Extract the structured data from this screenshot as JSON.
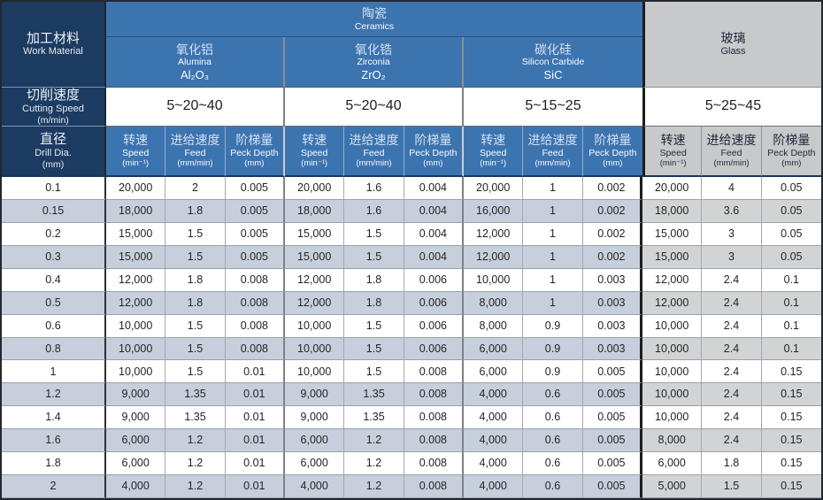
{
  "table": {
    "corner": {
      "zh": "加工材料",
      "en": "Work Material"
    },
    "ceramics_group": {
      "zh": "陶瓷",
      "en": "Ceramics"
    },
    "glass_group": {
      "zh": "玻璃",
      "en": "Glass"
    },
    "materials": [
      {
        "zh": "氧化铝",
        "en": "Alumina",
        "formula": "Al₂O₃",
        "cutting_speed": "5~20~40"
      },
      {
        "zh": "氧化锆",
        "en": "Zirconia",
        "formula": "ZrO₂",
        "cutting_speed": "5~20~40"
      },
      {
        "zh": "碳化硅",
        "en": "Silicon Carbide",
        "formula": "SiC",
        "cutting_speed": "5~15~25"
      }
    ],
    "glass_cutting_speed": "5~25~45",
    "cutting_speed_label": {
      "zh": "切削速度",
      "en": "Cutting Speed",
      "unit": "(m/min)"
    },
    "drill_dia_label": {
      "zh": "直径",
      "en": "Drill Dia.",
      "unit": "(mm)"
    },
    "sub_columns": [
      {
        "zh": "转速",
        "en": "Speed",
        "unit": "(min⁻¹)"
      },
      {
        "zh": "进给速度",
        "en": "Feed",
        "unit": "(mm/min)"
      },
      {
        "zh": "阶梯量",
        "en": "Peck Depth",
        "unit": "(mm)"
      }
    ],
    "rows": [
      [
        "0.1",
        "20,000",
        "2",
        "0.005",
        "20,000",
        "1.6",
        "0.004",
        "20,000",
        "1",
        "0.002",
        "20,000",
        "4",
        "0.05"
      ],
      [
        "0.15",
        "18,000",
        "1.8",
        "0.005",
        "18,000",
        "1.6",
        "0.004",
        "16,000",
        "1",
        "0.002",
        "18,000",
        "3.6",
        "0.05"
      ],
      [
        "0.2",
        "15,000",
        "1.5",
        "0.005",
        "15,000",
        "1.5",
        "0.004",
        "12,000",
        "1",
        "0.002",
        "15,000",
        "3",
        "0.05"
      ],
      [
        "0.3",
        "15,000",
        "1.5",
        "0.005",
        "15,000",
        "1.5",
        "0.004",
        "12,000",
        "1",
        "0.002",
        "15,000",
        "3",
        "0.05"
      ],
      [
        "0.4",
        "12,000",
        "1.8",
        "0.008",
        "12,000",
        "1.8",
        "0.006",
        "10,000",
        "1",
        "0.003",
        "12,000",
        "2.4",
        "0.1"
      ],
      [
        "0.5",
        "12,000",
        "1.8",
        "0.008",
        "12,000",
        "1.8",
        "0.006",
        "8,000",
        "1",
        "0.003",
        "12,000",
        "2.4",
        "0.1"
      ],
      [
        "0.6",
        "10,000",
        "1.5",
        "0.008",
        "10,000",
        "1.5",
        "0.006",
        "8,000",
        "0.9",
        "0.003",
        "10,000",
        "2.4",
        "0.1"
      ],
      [
        "0.8",
        "10,000",
        "1.5",
        "0.008",
        "10,000",
        "1.5",
        "0.006",
        "6,000",
        "0.9",
        "0.003",
        "10,000",
        "2.4",
        "0.1"
      ],
      [
        "1",
        "10,000",
        "1.5",
        "0.01",
        "10,000",
        "1.5",
        "0.008",
        "6,000",
        "0.9",
        "0.005",
        "10,000",
        "2.4",
        "0.15"
      ],
      [
        "1.2",
        "9,000",
        "1.35",
        "0.01",
        "9,000",
        "1.35",
        "0.008",
        "4,000",
        "0.6",
        "0.005",
        "10,000",
        "2.4",
        "0.15"
      ],
      [
        "1.4",
        "9,000",
        "1.35",
        "0.01",
        "9,000",
        "1.35",
        "0.008",
        "4,000",
        "0.6",
        "0.005",
        "10,000",
        "2.4",
        "0.15"
      ],
      [
        "1.6",
        "6,000",
        "1.2",
        "0.01",
        "6,000",
        "1.2",
        "0.008",
        "4,000",
        "0.6",
        "0.005",
        "8,000",
        "2.4",
        "0.15"
      ],
      [
        "1.8",
        "6,000",
        "1.2",
        "0.01",
        "6,000",
        "1.2",
        "0.008",
        "4,000",
        "0.6",
        "0.005",
        "6,000",
        "1.8",
        "0.15"
      ],
      [
        "2",
        "4,000",
        "1.2",
        "0.01",
        "4,000",
        "1.2",
        "0.008",
        "4,000",
        "0.6",
        "0.005",
        "5,000",
        "1.5",
        "0.15"
      ]
    ],
    "colors": {
      "navy": "#1c3b61",
      "blue": "#3c74b0",
      "stripe_ceramic": "#c7cfdc",
      "stripe_glass": "#d2d3d5",
      "glass_header_gray": "#c8c9cb"
    }
  }
}
